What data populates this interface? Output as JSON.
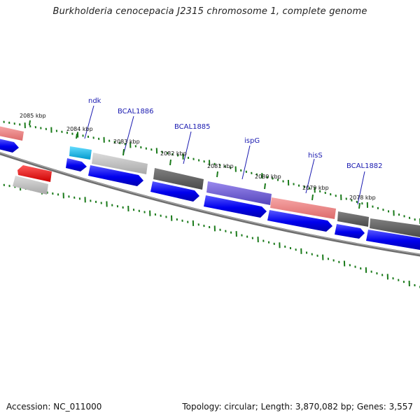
{
  "title": "Burkholderia cenocepacia J2315 chromosome 1, complete genome",
  "footer": {
    "accession": "Accession: NC_011000",
    "summary": "Topology: circular; Length: 3,870,082 bp; Genes: 3,557"
  },
  "ticks": [
    "2085 kbp",
    "2084 kbp",
    "2083 kbp",
    "2082 kbp",
    "2081 kbp",
    "2080 kbp",
    "2079 kbp",
    "2078 kbp"
  ],
  "genes": [
    "ndk",
    "BCAL1886",
    "BCAL1885",
    "ispG",
    "hisS",
    "BCAL1882"
  ],
  "colors": {
    "backbone": "#808080",
    "cds": "#0000ee",
    "gene_gray": "#c0c0c0",
    "gene_dark": "#606060",
    "gene_pink": "#ef8a8a",
    "gene_red": "#ee1111",
    "gene_cyan": "#22bbee",
    "gene_purple": "#7766dd",
    "tick_green": "#1a7a1a",
    "label_blue": "#1a1ab0"
  }
}
